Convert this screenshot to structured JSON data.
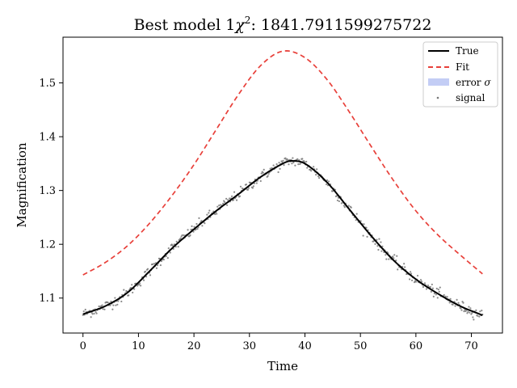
{
  "chart_data": {
    "type": "line",
    "title_prefix": "Best model 1",
    "title_chi": "χ",
    "title_sup": "2",
    "title_value": ": 1841.7911599275722",
    "xlabel": "Time",
    "ylabel": "Magnification",
    "xlim": [
      -3.6,
      75.6
    ],
    "ylim": [
      1.035,
      1.585
    ],
    "xticks": [
      0,
      10,
      20,
      30,
      40,
      50,
      60,
      70
    ],
    "xtick_labels": [
      "0",
      "10",
      "20",
      "30",
      "40",
      "50",
      "60",
      "70"
    ],
    "yticks": [
      1.1,
      1.2,
      1.3,
      1.4,
      1.5
    ],
    "ytick_labels": [
      "1.1",
      "1.2",
      "1.3",
      "1.4",
      "1.5"
    ],
    "grid": false,
    "legend_position": "top-right",
    "legend": [
      {
        "label": "True",
        "kind": "line",
        "color": "#000000"
      },
      {
        "label": "Fit",
        "kind": "dashed",
        "color": "#e8403a"
      },
      {
        "label_prefix": "error ",
        "label_sym": "σ",
        "kind": "patch",
        "color": "#c3cdf5"
      },
      {
        "label": "signal",
        "kind": "point",
        "color": "#777777"
      }
    ],
    "series": [
      {
        "name": "True",
        "color": "#000000",
        "x": [
          0,
          4,
          8,
          12,
          16,
          20,
          24,
          28,
          32,
          36,
          37.5,
          40,
          44,
          48,
          52,
          56,
          60,
          64,
          68,
          72
        ],
        "y": [
          1.07,
          1.085,
          1.11,
          1.15,
          1.192,
          1.228,
          1.262,
          1.293,
          1.325,
          1.35,
          1.355,
          1.35,
          1.315,
          1.265,
          1.215,
          1.17,
          1.135,
          1.108,
          1.085,
          1.068
        ]
      },
      {
        "name": "Fit",
        "color": "#e8403a",
        "x": [
          0,
          4,
          8,
          12,
          16,
          20,
          24,
          28,
          32,
          36,
          40,
          44,
          48,
          52,
          56,
          60,
          64,
          68,
          72
        ],
        "y": [
          1.143,
          1.166,
          1.197,
          1.239,
          1.29,
          1.348,
          1.413,
          1.478,
          1.532,
          1.559,
          1.547,
          1.506,
          1.446,
          1.381,
          1.318,
          1.262,
          1.217,
          1.18,
          1.145
        ]
      }
    ],
    "signal": {
      "name": "signal",
      "color": "#777777",
      "count": 500,
      "x_range": [
        0,
        72
      ],
      "noise": 0.005
    }
  }
}
